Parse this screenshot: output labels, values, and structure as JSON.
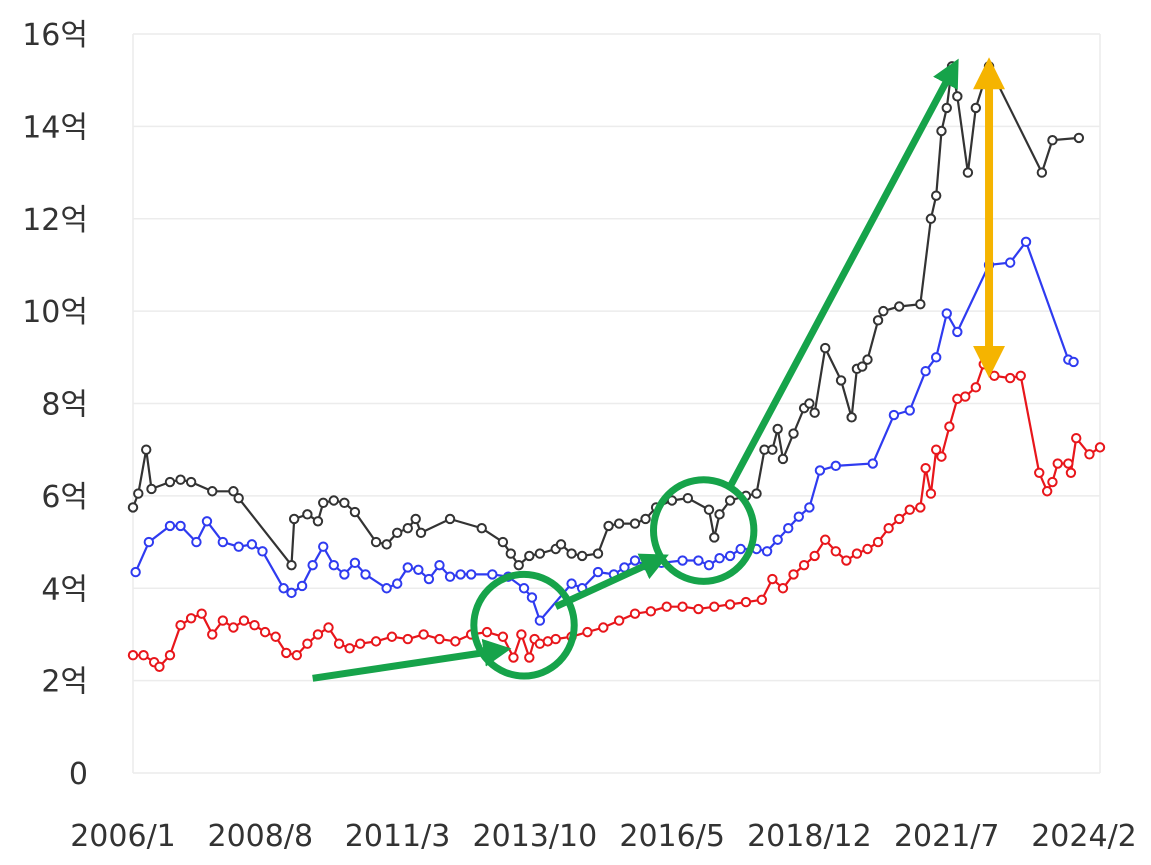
{
  "chart_data": {
    "type": "line",
    "title": "",
    "xlabel": "",
    "ylabel": "",
    "x_ticks": [
      "2006/1",
      "2008/8",
      "2011/3",
      "2013/10",
      "2016/5",
      "2018/12",
      "2021/7",
      "2024/2"
    ],
    "y_ticks": [
      {
        "value": 0,
        "label": "0"
      },
      {
        "value": 2,
        "label": "2억"
      },
      {
        "value": 4,
        "label": "4억"
      },
      {
        "value": 6,
        "label": "6억"
      },
      {
        "value": 8,
        "label": "8억"
      },
      {
        "value": 10,
        "label": "10억"
      },
      {
        "value": 12,
        "label": "12억"
      },
      {
        "value": 14,
        "label": "14억"
      },
      {
        "value": 16,
        "label": "16억"
      }
    ],
    "xlim": [
      2006.0,
      2024.3
    ],
    "ylim": [
      0,
      16
    ],
    "grid": true,
    "series": [
      {
        "color": "#333333",
        "points": [
          [
            2006.0,
            5.75
          ],
          [
            2006.1,
            6.05
          ],
          [
            2006.25,
            7.0
          ],
          [
            2006.35,
            6.15
          ],
          [
            2006.7,
            6.3
          ],
          [
            2006.9,
            6.35
          ],
          [
            2007.1,
            6.3
          ],
          [
            2007.5,
            6.1
          ],
          [
            2007.9,
            6.1
          ],
          [
            2008.0,
            5.95
          ],
          [
            2009.0,
            4.5
          ],
          [
            2009.05,
            5.5
          ],
          [
            2009.3,
            5.6
          ],
          [
            2009.5,
            5.45
          ],
          [
            2009.6,
            5.85
          ],
          [
            2009.8,
            5.9
          ],
          [
            2010.0,
            5.85
          ],
          [
            2010.2,
            5.65
          ],
          [
            2010.6,
            5.0
          ],
          [
            2010.8,
            4.95
          ],
          [
            2011.0,
            5.2
          ],
          [
            2011.2,
            5.3
          ],
          [
            2011.35,
            5.5
          ],
          [
            2011.45,
            5.2
          ],
          [
            2012.0,
            5.5
          ],
          [
            2012.6,
            5.3
          ],
          [
            2013.0,
            5.0
          ],
          [
            2013.15,
            4.75
          ],
          [
            2013.3,
            4.5
          ],
          [
            2013.5,
            4.7
          ],
          [
            2013.7,
            4.75
          ],
          [
            2014.0,
            4.85
          ],
          [
            2014.1,
            4.95
          ],
          [
            2014.3,
            4.75
          ],
          [
            2014.5,
            4.7
          ],
          [
            2014.8,
            4.75
          ],
          [
            2015.0,
            5.35
          ],
          [
            2015.2,
            5.4
          ],
          [
            2015.5,
            5.4
          ],
          [
            2015.7,
            5.5
          ],
          [
            2015.9,
            5.75
          ],
          [
            2016.2,
            5.9
          ],
          [
            2016.5,
            5.95
          ],
          [
            2016.9,
            5.7
          ],
          [
            2017.0,
            5.1
          ],
          [
            2017.1,
            5.6
          ],
          [
            2017.3,
            5.9
          ],
          [
            2017.6,
            6.0
          ],
          [
            2017.8,
            6.05
          ],
          [
            2017.95,
            7.0
          ],
          [
            2018.1,
            7.0
          ],
          [
            2018.2,
            7.45
          ],
          [
            2018.3,
            6.8
          ],
          [
            2018.5,
            7.35
          ],
          [
            2018.7,
            7.9
          ],
          [
            2018.8,
            8.0
          ],
          [
            2018.9,
            7.8
          ],
          [
            2019.1,
            9.2
          ],
          [
            2019.4,
            8.5
          ],
          [
            2019.6,
            7.7
          ],
          [
            2019.7,
            8.75
          ],
          [
            2019.8,
            8.8
          ],
          [
            2019.9,
            8.95
          ],
          [
            2020.1,
            9.8
          ],
          [
            2020.2,
            10.0
          ],
          [
            2020.5,
            10.1
          ],
          [
            2020.9,
            10.15
          ],
          [
            2021.1,
            12.0
          ],
          [
            2021.2,
            12.5
          ],
          [
            2021.3,
            13.9
          ],
          [
            2021.4,
            14.4
          ],
          [
            2021.5,
            15.3
          ],
          [
            2021.6,
            14.65
          ],
          [
            2021.8,
            13.0
          ],
          [
            2021.95,
            14.4
          ],
          [
            2022.2,
            15.3
          ],
          [
            2023.2,
            13.0
          ],
          [
            2023.4,
            13.7
          ],
          [
            2023.9,
            13.75
          ]
        ]
      },
      {
        "color": "#2f3bf0",
        "points": [
          [
            2006.05,
            4.35
          ],
          [
            2006.3,
            5.0
          ],
          [
            2006.7,
            5.35
          ],
          [
            2006.9,
            5.35
          ],
          [
            2007.2,
            5.0
          ],
          [
            2007.4,
            5.45
          ],
          [
            2007.7,
            5.0
          ],
          [
            2008.0,
            4.9
          ],
          [
            2008.25,
            4.95
          ],
          [
            2008.45,
            4.8
          ],
          [
            2008.85,
            4.0
          ],
          [
            2009.0,
            3.9
          ],
          [
            2009.2,
            4.05
          ],
          [
            2009.4,
            4.5
          ],
          [
            2009.6,
            4.9
          ],
          [
            2009.8,
            4.5
          ],
          [
            2010.0,
            4.3
          ],
          [
            2010.2,
            4.55
          ],
          [
            2010.4,
            4.3
          ],
          [
            2010.8,
            4.0
          ],
          [
            2011.0,
            4.1
          ],
          [
            2011.2,
            4.45
          ],
          [
            2011.4,
            4.4
          ],
          [
            2011.6,
            4.2
          ],
          [
            2011.8,
            4.5
          ],
          [
            2012.0,
            4.25
          ],
          [
            2012.2,
            4.3
          ],
          [
            2012.4,
            4.3
          ],
          [
            2012.8,
            4.3
          ],
          [
            2013.1,
            4.25
          ],
          [
            2013.4,
            4.0
          ],
          [
            2013.55,
            3.8
          ],
          [
            2013.7,
            3.3
          ],
          [
            2014.3,
            4.1
          ],
          [
            2014.5,
            4.0
          ],
          [
            2014.8,
            4.35
          ],
          [
            2015.1,
            4.3
          ],
          [
            2015.3,
            4.45
          ],
          [
            2015.5,
            4.6
          ],
          [
            2015.7,
            4.5
          ],
          [
            2016.0,
            4.55
          ],
          [
            2016.4,
            4.6
          ],
          [
            2016.7,
            4.6
          ],
          [
            2016.9,
            4.5
          ],
          [
            2017.1,
            4.65
          ],
          [
            2017.3,
            4.7
          ],
          [
            2017.5,
            4.85
          ],
          [
            2017.8,
            4.85
          ],
          [
            2018.0,
            4.8
          ],
          [
            2018.2,
            5.05
          ],
          [
            2018.4,
            5.3
          ],
          [
            2018.6,
            5.55
          ],
          [
            2018.8,
            5.75
          ],
          [
            2019.0,
            6.55
          ],
          [
            2019.3,
            6.65
          ],
          [
            2020.0,
            6.7
          ],
          [
            2020.4,
            7.75
          ],
          [
            2020.7,
            7.85
          ],
          [
            2021.0,
            8.7
          ],
          [
            2021.2,
            9.0
          ],
          [
            2021.4,
            9.95
          ],
          [
            2021.6,
            9.55
          ],
          [
            2022.2,
            11.0
          ],
          [
            2022.6,
            11.05
          ],
          [
            2022.9,
            11.5
          ],
          [
            2023.7,
            8.95
          ],
          [
            2023.8,
            8.9
          ]
        ]
      },
      {
        "color": "#e8161b",
        "points": [
          [
            2006.0,
            2.55
          ],
          [
            2006.2,
            2.55
          ],
          [
            2006.4,
            2.4
          ],
          [
            2006.5,
            2.3
          ],
          [
            2006.7,
            2.55
          ],
          [
            2006.9,
            3.2
          ],
          [
            2007.1,
            3.35
          ],
          [
            2007.3,
            3.45
          ],
          [
            2007.5,
            3.0
          ],
          [
            2007.7,
            3.3
          ],
          [
            2007.9,
            3.15
          ],
          [
            2008.1,
            3.3
          ],
          [
            2008.3,
            3.2
          ],
          [
            2008.5,
            3.05
          ],
          [
            2008.7,
            2.95
          ],
          [
            2008.9,
            2.6
          ],
          [
            2009.1,
            2.55
          ],
          [
            2009.3,
            2.8
          ],
          [
            2009.5,
            3.0
          ],
          [
            2009.7,
            3.15
          ],
          [
            2009.9,
            2.8
          ],
          [
            2010.1,
            2.7
          ],
          [
            2010.3,
            2.8
          ],
          [
            2010.6,
            2.85
          ],
          [
            2010.9,
            2.95
          ],
          [
            2011.2,
            2.9
          ],
          [
            2011.5,
            3.0
          ],
          [
            2011.8,
            2.9
          ],
          [
            2012.1,
            2.85
          ],
          [
            2012.4,
            3.0
          ],
          [
            2012.7,
            3.05
          ],
          [
            2013.0,
            2.95
          ],
          [
            2013.2,
            2.5
          ],
          [
            2013.35,
            3.0
          ],
          [
            2013.5,
            2.5
          ],
          [
            2013.6,
            2.9
          ],
          [
            2013.7,
            2.8
          ],
          [
            2013.85,
            2.85
          ],
          [
            2014.0,
            2.9
          ],
          [
            2014.3,
            2.95
          ],
          [
            2014.6,
            3.05
          ],
          [
            2014.9,
            3.15
          ],
          [
            2015.2,
            3.3
          ],
          [
            2015.5,
            3.45
          ],
          [
            2015.8,
            3.5
          ],
          [
            2016.1,
            3.6
          ],
          [
            2016.4,
            3.6
          ],
          [
            2016.7,
            3.55
          ],
          [
            2017.0,
            3.6
          ],
          [
            2017.3,
            3.65
          ],
          [
            2017.6,
            3.7
          ],
          [
            2017.9,
            3.75
          ],
          [
            2018.1,
            4.2
          ],
          [
            2018.3,
            4.0
          ],
          [
            2018.5,
            4.3
          ],
          [
            2018.7,
            4.5
          ],
          [
            2018.9,
            4.7
          ],
          [
            2019.1,
            5.05
          ],
          [
            2019.3,
            4.8
          ],
          [
            2019.5,
            4.6
          ],
          [
            2019.7,
            4.75
          ],
          [
            2019.9,
            4.85
          ],
          [
            2020.1,
            5.0
          ],
          [
            2020.3,
            5.3
          ],
          [
            2020.5,
            5.5
          ],
          [
            2020.7,
            5.7
          ],
          [
            2020.9,
            5.75
          ],
          [
            2021.0,
            6.6
          ],
          [
            2021.1,
            6.05
          ],
          [
            2021.2,
            7.0
          ],
          [
            2021.3,
            6.85
          ],
          [
            2021.45,
            7.5
          ],
          [
            2021.6,
            8.1
          ],
          [
            2021.75,
            8.15
          ],
          [
            2021.95,
            8.35
          ],
          [
            2022.1,
            8.85
          ],
          [
            2022.3,
            8.6
          ],
          [
            2022.6,
            8.55
          ],
          [
            2022.8,
            8.6
          ],
          [
            2023.15,
            6.5
          ],
          [
            2023.3,
            6.1
          ],
          [
            2023.4,
            6.3
          ],
          [
            2023.5,
            6.7
          ],
          [
            2023.7,
            6.7
          ],
          [
            2023.75,
            6.5
          ],
          [
            2023.85,
            7.25
          ],
          [
            2024.1,
            6.9
          ],
          [
            2024.3,
            7.05
          ]
        ]
      }
    ],
    "annotations": [
      {
        "kind": "arrow",
        "color": "#16a34a",
        "from": [
          2009.4,
          2.05
        ],
        "to": [
          2012.9,
          2.65
        ]
      },
      {
        "kind": "circle",
        "color": "#16a34a",
        "center": [
          2013.4,
          3.2
        ],
        "rx_years": 0.95,
        "ry_value": 1.1
      },
      {
        "kind": "arrow",
        "color": "#16a34a",
        "from": [
          2014.0,
          3.6
        ],
        "to": [
          2015.9,
          4.6
        ]
      },
      {
        "kind": "circle",
        "color": "#16a34a",
        "center": [
          2016.8,
          5.25
        ],
        "rx_years": 0.95,
        "ry_value": 1.1
      },
      {
        "kind": "arrow",
        "color": "#16a34a",
        "from": [
          2017.3,
          6.2
        ],
        "to": [
          2021.5,
          15.2
        ]
      },
      {
        "kind": "double-arrow",
        "color": "#f5b400",
        "from": [
          2022.2,
          15.15
        ],
        "to": [
          2022.2,
          8.9
        ]
      }
    ]
  }
}
